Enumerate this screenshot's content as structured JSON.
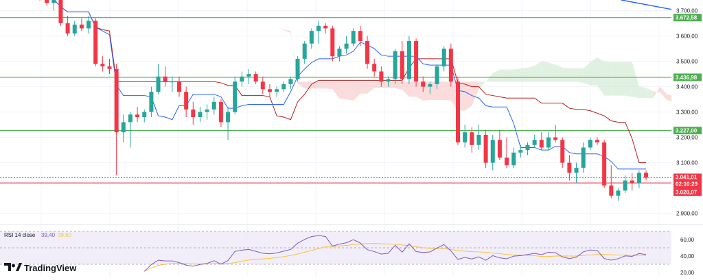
{
  "brand": {
    "name": "TradingView",
    "logo_icon": "tradingview-logo-icon"
  },
  "colors": {
    "up": "#26a69a",
    "down": "#f23645",
    "level_line": "#4caf50",
    "price_line": "#f23645",
    "tenkan": "#2962ff",
    "kijun": "#b71c1c",
    "cloud_bear": "#f8bfbf",
    "cloud_bull": "#c8e6c9",
    "rsi_line": "#7e57c2",
    "rsi_ma": "#f7c531",
    "rsi_band": "#ede7f6",
    "trend": "#2962ff"
  },
  "chart_data": {
    "type": "candlestick",
    "price_axis": {
      "ylim": [
        2856,
        3742
      ],
      "ticks": [
        "3.700,00",
        "3.600,00",
        "3.500,00",
        "3.400,00",
        "3.300,00",
        "3.200,00",
        "3.100,00",
        "2.900,00"
      ],
      "tick_values": [
        3700,
        3600,
        3500,
        3400,
        3300,
        3200,
        3100,
        2900
      ]
    },
    "horizontal_levels": [
      {
        "value": 3672.58,
        "label": "3.672,58"
      },
      {
        "value": 3436.98,
        "label": "3.436,98"
      },
      {
        "value": 3227.0,
        "label": "3.227,00"
      },
      {
        "value": 3020.07,
        "label": "3.020,07"
      }
    ],
    "current_price": {
      "value": 3041.01,
      "label": "3.041,01",
      "countdown": "02:10:29"
    },
    "candles_ohlc": [
      [
        3770,
        3790,
        3740,
        3760
      ],
      [
        3760,
        3780,
        3720,
        3730
      ],
      [
        3730,
        3760,
        3700,
        3745
      ],
      [
        3745,
        3760,
        3640,
        3650
      ],
      [
        3650,
        3680,
        3600,
        3610
      ],
      [
        3610,
        3660,
        3600,
        3645
      ],
      [
        3645,
        3670,
        3620,
        3630
      ],
      [
        3630,
        3680,
        3610,
        3660
      ],
      [
        3660,
        3670,
        3480,
        3490
      ],
      [
        3490,
        3520,
        3460,
        3480
      ],
      [
        3480,
        3510,
        3450,
        3470
      ],
      [
        3470,
        3490,
        3050,
        3220
      ],
      [
        3220,
        3290,
        3180,
        3260
      ],
      [
        3260,
        3300,
        3160,
        3290
      ],
      [
        3290,
        3320,
        3260,
        3280
      ],
      [
        3280,
        3310,
        3260,
        3300
      ],
      [
        3300,
        3400,
        3280,
        3380
      ],
      [
        3380,
        3490,
        3370,
        3440
      ],
      [
        3440,
        3480,
        3400,
        3420
      ],
      [
        3420,
        3440,
        3380,
        3420
      ],
      [
        3420,
        3440,
        3360,
        3380
      ],
      [
        3380,
        3400,
        3280,
        3310
      ],
      [
        3310,
        3340,
        3250,
        3280
      ],
      [
        3280,
        3320,
        3260,
        3300
      ],
      [
        3300,
        3330,
        3270,
        3310
      ],
      [
        3310,
        3360,
        3290,
        3340
      ],
      [
        3340,
        3350,
        3240,
        3260
      ],
      [
        3260,
        3320,
        3190,
        3300
      ],
      [
        3300,
        3440,
        3290,
        3420
      ],
      [
        3420,
        3460,
        3400,
        3440
      ],
      [
        3440,
        3470,
        3410,
        3450
      ],
      [
        3450,
        3460,
        3410,
        3420
      ],
      [
        3420,
        3440,
        3370,
        3390
      ],
      [
        3390,
        3410,
        3360,
        3380
      ],
      [
        3380,
        3400,
        3360,
        3390
      ],
      [
        3390,
        3420,
        3380,
        3410
      ],
      [
        3410,
        3440,
        3390,
        3430
      ],
      [
        3430,
        3520,
        3420,
        3510
      ],
      [
        3510,
        3580,
        3490,
        3570
      ],
      [
        3570,
        3630,
        3550,
        3620
      ],
      [
        3620,
        3660,
        3570,
        3640
      ],
      [
        3640,
        3650,
        3610,
        3630
      ],
      [
        3630,
        3640,
        3500,
        3520
      ],
      [
        3520,
        3560,
        3500,
        3550
      ],
      [
        3550,
        3600,
        3530,
        3570
      ],
      [
        3570,
        3630,
        3560,
        3620
      ],
      [
        3620,
        3640,
        3560,
        3580
      ],
      [
        3580,
        3600,
        3470,
        3490
      ],
      [
        3490,
        3510,
        3440,
        3460
      ],
      [
        3460,
        3480,
        3400,
        3420
      ],
      [
        3420,
        3440,
        3400,
        3430
      ],
      [
        3430,
        3550,
        3410,
        3540
      ],
      [
        3540,
        3580,
        3410,
        3430
      ],
      [
        3430,
        3600,
        3410,
        3580
      ],
      [
        3580,
        3590,
        3400,
        3420
      ],
      [
        3420,
        3440,
        3380,
        3400
      ],
      [
        3400,
        3420,
        3370,
        3410
      ],
      [
        3410,
        3490,
        3390,
        3480
      ],
      [
        3480,
        3560,
        3460,
        3550
      ],
      [
        3550,
        3570,
        3400,
        3420
      ],
      [
        3420,
        3440,
        3170,
        3180
      ],
      [
        3180,
        3250,
        3160,
        3220
      ],
      [
        3220,
        3240,
        3140,
        3170
      ],
      [
        3170,
        3250,
        3150,
        3210
      ],
      [
        3210,
        3230,
        3080,
        3100
      ],
      [
        3100,
        3210,
        3070,
        3190
      ],
      [
        3190,
        3230,
        3110,
        3120
      ],
      [
        3120,
        3200,
        3080,
        3090
      ],
      [
        3090,
        3160,
        3080,
        3140
      ],
      [
        3140,
        3170,
        3120,
        3150
      ],
      [
        3150,
        3180,
        3130,
        3170
      ],
      [
        3170,
        3210,
        3160,
        3190
      ],
      [
        3190,
        3220,
        3150,
        3160
      ],
      [
        3160,
        3220,
        3150,
        3200
      ],
      [
        3200,
        3250,
        3180,
        3190
      ],
      [
        3190,
        3200,
        3080,
        3100
      ],
      [
        3100,
        3130,
        3030,
        3060
      ],
      [
        3060,
        3100,
        3020,
        3080
      ],
      [
        3080,
        3180,
        3060,
        3160
      ],
      [
        3160,
        3200,
        3150,
        3190
      ],
      [
        3190,
        3200,
        3170,
        3180
      ],
      [
        3180,
        3190,
        3000,
        3010
      ],
      [
        3010,
        3090,
        2960,
        2970
      ],
      [
        2970,
        3000,
        2950,
        2990
      ],
      [
        2990,
        3050,
        2980,
        3030
      ],
      [
        3030,
        3060,
        2990,
        3020
      ],
      [
        3020,
        3070,
        3000,
        3060
      ],
      [
        3060,
        3070,
        3030,
        3041
      ]
    ],
    "rsi": {
      "title": "RSI 14 close",
      "value": "39,40",
      "ma_value": "39,60",
      "ylim": [
        15,
        75
      ],
      "ticks": [
        "60,00",
        "40,00",
        "20,00"
      ],
      "tick_values": [
        60,
        40,
        20
      ],
      "upper": 70,
      "lower": 30
    }
  }
}
